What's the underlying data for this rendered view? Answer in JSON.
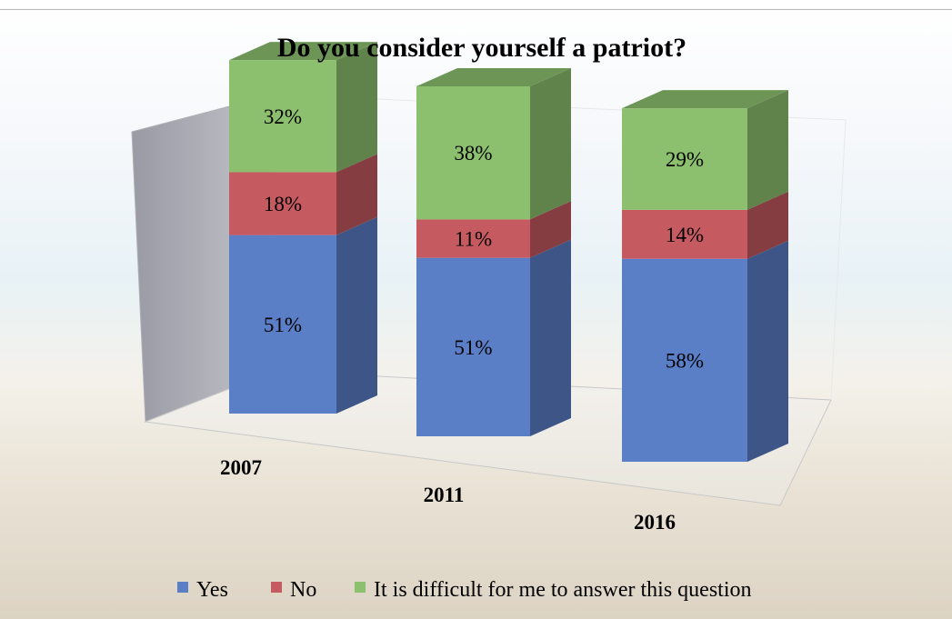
{
  "chart_data": {
    "type": "bar",
    "stacked": true,
    "three_d": true,
    "title": "Do you consider yourself a patriot?",
    "categories": [
      "2007",
      "2011",
      "2016"
    ],
    "series": [
      {
        "name": "Yes",
        "values": [
          51,
          51,
          58
        ],
        "labels": [
          "51%",
          "51%",
          "58%"
        ],
        "color": "#5b7fc7"
      },
      {
        "name": "No",
        "values": [
          18,
          11,
          14
        ],
        "labels": [
          "18%",
          "11%",
          "14%"
        ],
        "color": "#c55a60"
      },
      {
        "name": "It is difficult for me to answer this question",
        "values": [
          32,
          38,
          29
        ],
        "labels": [
          "32%",
          "38%",
          "29%"
        ],
        "color": "#8cc06e"
      }
    ],
    "legend": "bottom",
    "grid": false
  }
}
